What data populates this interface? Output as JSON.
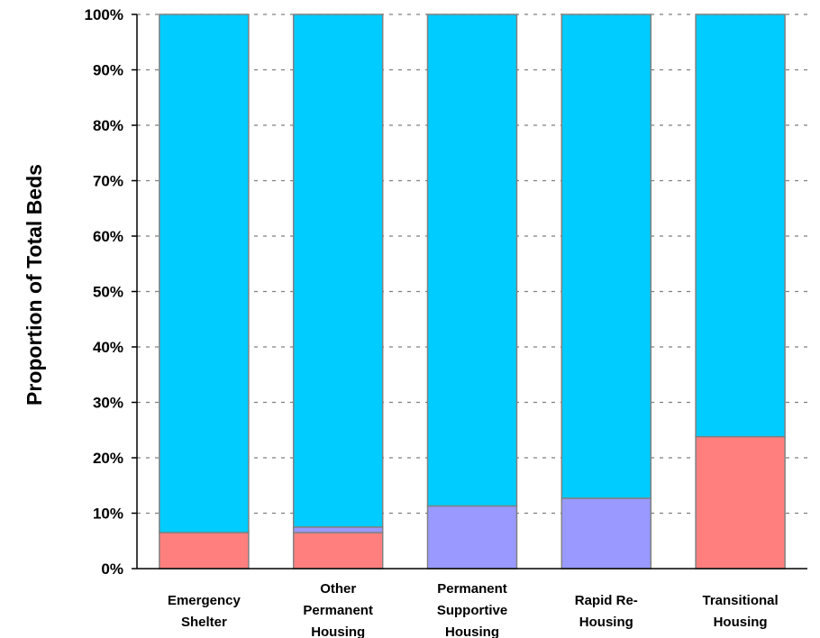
{
  "chart_data": {
    "type": "bar",
    "stacked": true,
    "percent_stacked": true,
    "categories": [
      [
        "Emergency",
        "Shelter"
      ],
      [
        "Other",
        "Permanent",
        "Housing"
      ],
      [
        "Permanent",
        "Supportive",
        "Housing"
      ],
      [
        "Rapid Re-",
        "Housing"
      ],
      [
        "Transitional",
        "Housing"
      ]
    ],
    "series": [
      {
        "color": "#ff7f7f",
        "values": [
          6.5,
          6.5,
          0,
          0,
          23.8
        ]
      },
      {
        "color": "#9999ff",
        "values": [
          0,
          1.0,
          11.3,
          12.7,
          0
        ]
      },
      {
        "color": "#00ccff",
        "values": [
          93.5,
          92.5,
          88.7,
          87.3,
          76.2
        ]
      }
    ],
    "ylabel": "Proportion of Total Beds",
    "xlabel": "",
    "ylim": [
      0,
      100
    ],
    "yticks": [
      "0%",
      "10%",
      "20%",
      "30%",
      "40%",
      "50%",
      "60%",
      "70%",
      "80%",
      "90%",
      "100%"
    ],
    "grid": true,
    "bar_outline_color": "#808080",
    "legend": "none"
  }
}
